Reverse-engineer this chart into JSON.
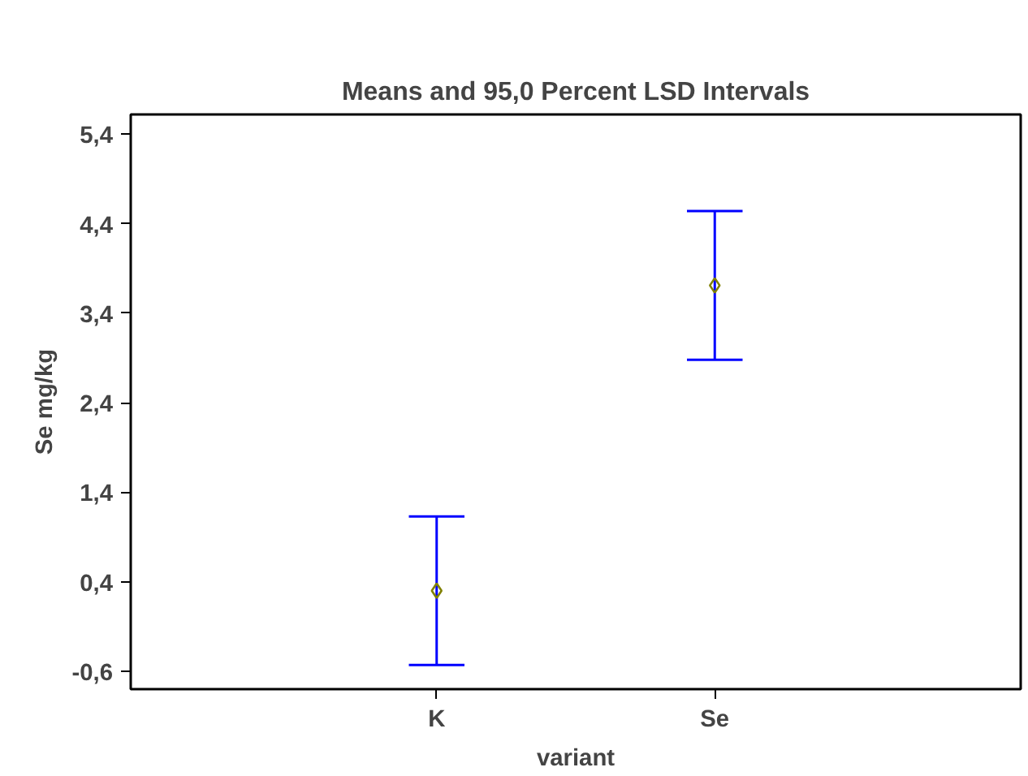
{
  "chart_data": {
    "type": "scatter",
    "title": "Means and 95,0 Percent LSD Intervals",
    "xlabel": "variant",
    "ylabel": "Se mg/kg",
    "categories": [
      "K",
      "Se"
    ],
    "series": [
      {
        "color": "#808000",
        "values": [
          0.3,
          3.71
        ],
        "errors": [
          0.83,
          0.83
        ]
      }
    ],
    "ylim": [
      -0.8,
      5.62
    ],
    "yticks": [
      {
        "value": -0.6,
        "label": "-0,6"
      },
      {
        "value": 0.4,
        "label": "0,4"
      },
      {
        "value": 1.4,
        "label": "1,4"
      },
      {
        "value": 2.4,
        "label": "2,4"
      },
      {
        "value": 3.4,
        "label": "3,4"
      },
      {
        "value": 4.4,
        "label": "4,4"
      },
      {
        "value": 5.4,
        "label": "5,4"
      }
    ],
    "marker": "diamond",
    "grid": false
  }
}
